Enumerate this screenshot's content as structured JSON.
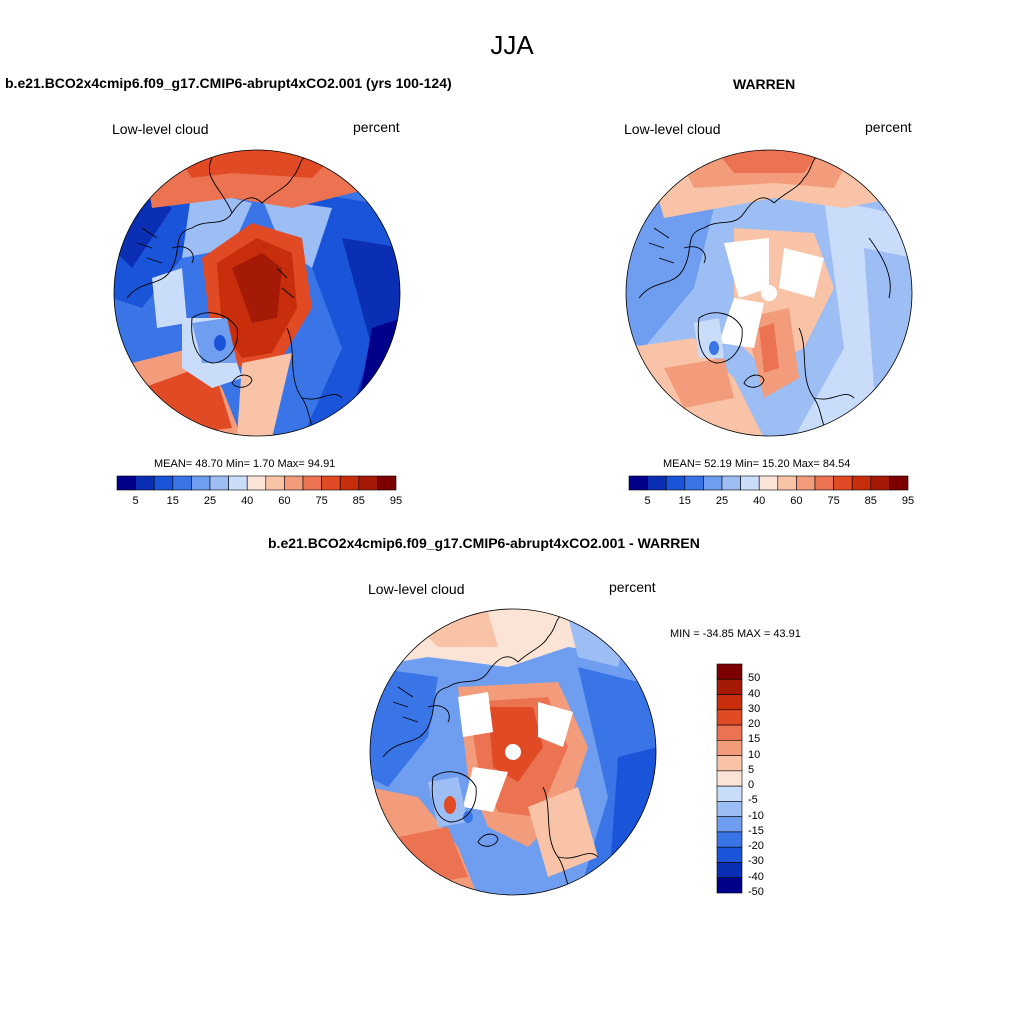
{
  "figure_title": "JJA",
  "panels": [
    {
      "title": "b.e21.BCO2x4cmip6.f09_g17.CMIP6-abrupt4xCO2.001 (yrs 100-124)",
      "variable": "Low-level cloud",
      "units": "percent",
      "stats": {
        "mean": "48.70",
        "min": "1.70",
        "max": "94.91"
      },
      "stats_text": "MEAN=  48.70  Min=   1.70  Max=  94.91"
    },
    {
      "title": "WARREN",
      "variable": "Low-level cloud",
      "units": "percent",
      "stats": {
        "mean": "52.19",
        "min": "15.20",
        "max": "84.54"
      },
      "stats_text": "MEAN=  52.19  Min=  15.20  Max=  84.54"
    },
    {
      "title": "b.e21.BCO2x4cmip6.f09_g17.CMIP6-abrupt4xCO2.001 - WARREN",
      "variable": "Low-level cloud",
      "units": "percent",
      "stats": {
        "min": "-34.85",
        "max": "43.91"
      },
      "stats_text": "MIN = -34.85 MAX =  43.91"
    }
  ],
  "colorbar_horizontal": {
    "tick_labels": [
      "5",
      "15",
      "25",
      "40",
      "60",
      "75",
      "85",
      "95"
    ],
    "colors": [
      "#00008b",
      "#0a2fb4",
      "#1a55d9",
      "#3a75e8",
      "#6f9ef0",
      "#9dbdf5",
      "#c9dcf9",
      "#fbe4d5",
      "#f9c3a8",
      "#f39c7b",
      "#ec7352",
      "#e04b26",
      "#c82d0c",
      "#a41a06",
      "#7d0000"
    ]
  },
  "colorbar_vertical": {
    "tick_labels": [
      "50",
      "40",
      "30",
      "20",
      "15",
      "10",
      "5",
      "0",
      "-5",
      "-10",
      "-15",
      "-20",
      "-30",
      "-40",
      "-50"
    ],
    "colors": [
      "#7d0000",
      "#a41a06",
      "#c82d0c",
      "#e04b26",
      "#ec7352",
      "#f39c7b",
      "#f9c3a8",
      "#fbe4d5",
      "#c9dcf9",
      "#9dbdf5",
      "#6f9ef0",
      "#3a75e8",
      "#1a55d9",
      "#0a2fb4",
      "#00008b"
    ]
  },
  "chart_data": [
    {
      "type": "heatmap",
      "title": "b.e21.BCO2x4cmip6.f09_g17.CMIP6-abrupt4xCO2.001 (yrs 100-124)",
      "variable": "Low-level cloud",
      "units": "percent",
      "projection": "north polar stereographic",
      "mean": 48.7,
      "min": 1.7,
      "max": 94.91,
      "levels": [
        5,
        10,
        15,
        20,
        25,
        30,
        40,
        50,
        60,
        70,
        75,
        80,
        85,
        90,
        95
      ]
    },
    {
      "type": "heatmap",
      "title": "WARREN",
      "variable": "Low-level cloud",
      "units": "percent",
      "projection": "north polar stereographic",
      "mean": 52.19,
      "min": 15.2,
      "max": 84.54,
      "levels": [
        5,
        10,
        15,
        20,
        25,
        30,
        40,
        50,
        60,
        70,
        75,
        80,
        85,
        90,
        95
      ]
    },
    {
      "type": "heatmap",
      "title": "b.e21.BCO2x4cmip6.f09_g17.CMIP6-abrupt4xCO2.001 - WARREN",
      "variable": "Low-level cloud",
      "units": "percent",
      "projection": "north polar stereographic",
      "min": -34.85,
      "max": 43.91,
      "levels": [
        -50,
        -40,
        -30,
        -20,
        -15,
        -10,
        -5,
        0,
        5,
        10,
        15,
        20,
        30,
        40,
        50
      ]
    }
  ]
}
